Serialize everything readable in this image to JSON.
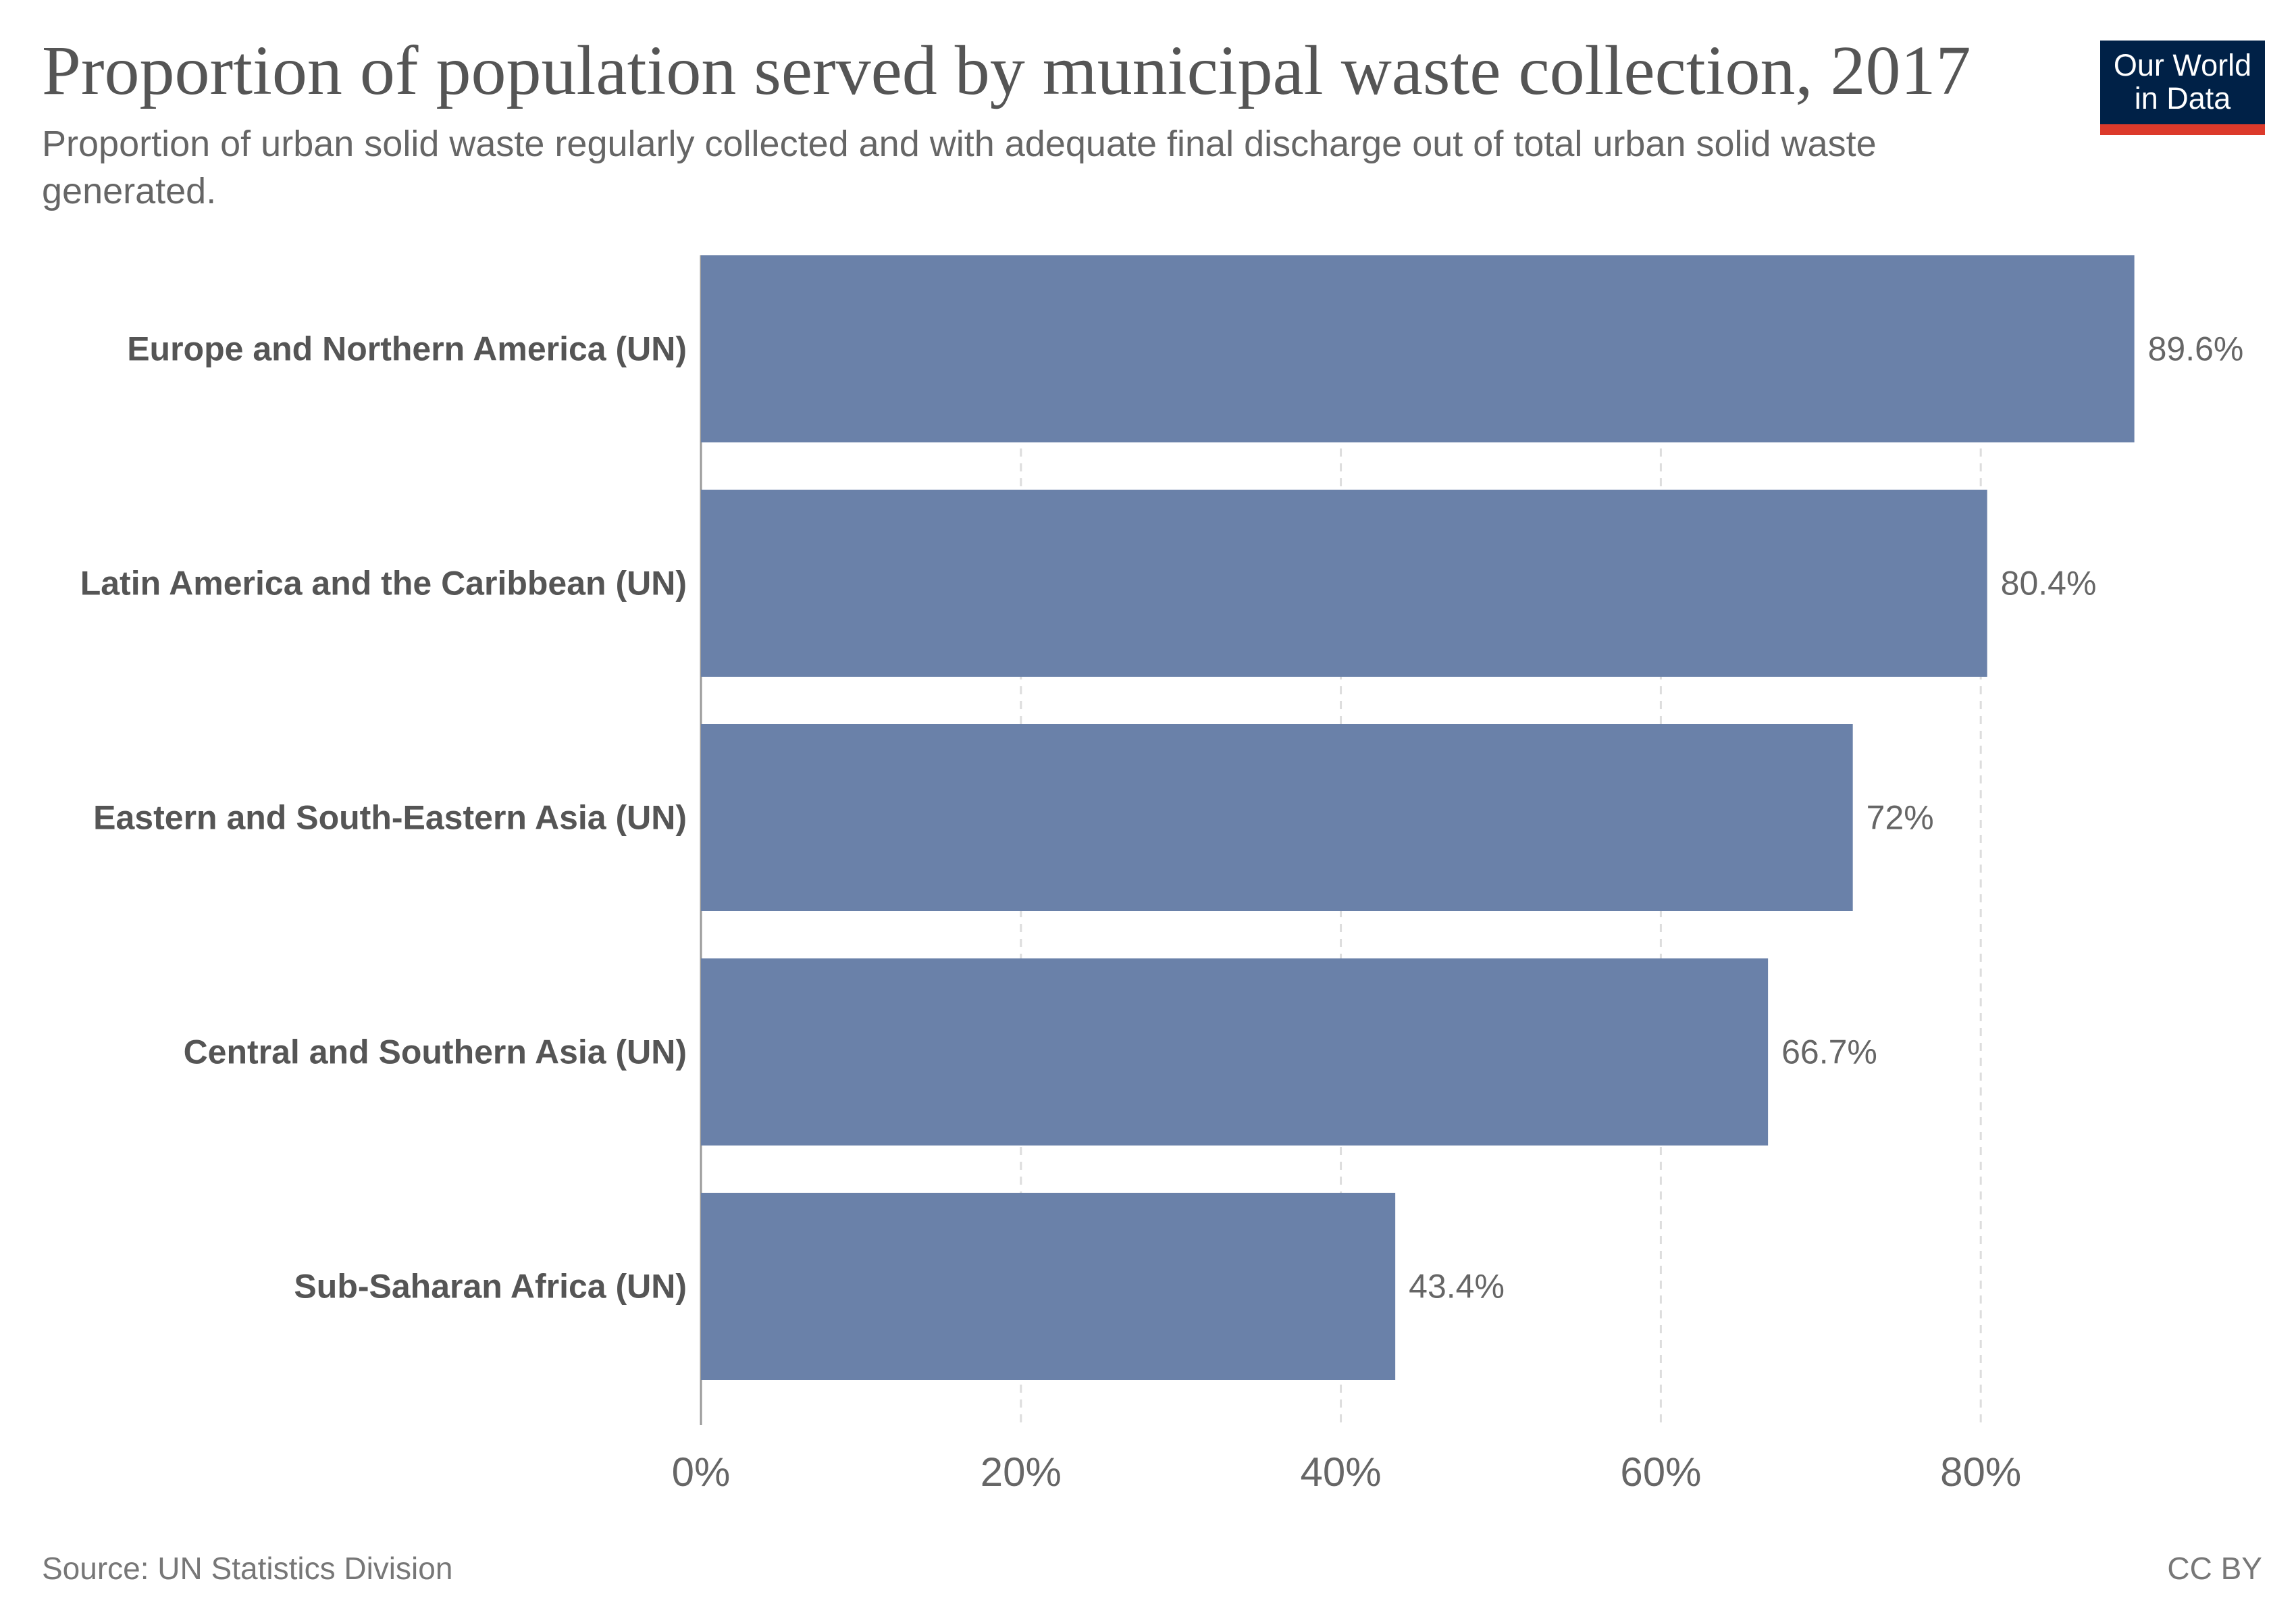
{
  "header": {
    "title": "Proportion of population served by municipal waste collection, 2017",
    "subtitle": "Proportion of urban solid waste regularly collected and with adequate final discharge out of total urban solid waste generated."
  },
  "logo": {
    "line1": "Our World",
    "line2": "in Data"
  },
  "footer": {
    "source": "Source: UN Statistics Division",
    "license": "CC BY"
  },
  "colors": {
    "bar": "#6a81a9",
    "grid": "#dddddd",
    "axis": "#999999",
    "logo_bg": "#002147",
    "logo_accent": "#dc3a2b"
  },
  "chart_data": {
    "type": "bar",
    "orientation": "horizontal",
    "categories": [
      "Europe and Northern America (UN)",
      "Latin America and the Caribbean (UN)",
      "Eastern and South-Eastern Asia (UN)",
      "Central and Southern Asia (UN)",
      "Sub-Saharan Africa (UN)"
    ],
    "values": [
      89.6,
      80.4,
      72,
      66.7,
      43.4
    ],
    "value_labels": [
      "89.6%",
      "80.4%",
      "72%",
      "66.7%",
      "43.4%"
    ],
    "x_ticks": [
      0,
      20,
      40,
      60,
      80
    ],
    "x_tick_labels": [
      "0%",
      "20%",
      "40%",
      "60%",
      "80%"
    ],
    "xlim": [
      0,
      100
    ],
    "grid": true,
    "legend": "none"
  }
}
